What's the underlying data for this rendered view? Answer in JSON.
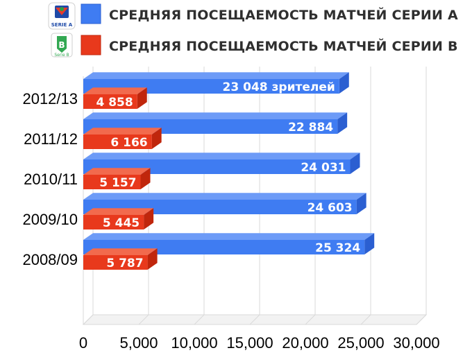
{
  "legend": {
    "seriesA_label": "СРЕДНЯЯ ПОСЕЩАЕМОСТЬ МАТЧЕЙ СЕРИИ А",
    "seriesB_label": "СРЕДНЯЯ ПОСЕЩАЕМОСТЬ МАТЧЕЙ СЕРИИ В",
    "seriesA_logo_text": "SERIE A",
    "seriesB_logo_text": "Serie B"
  },
  "colors": {
    "seriesA": "#3f7cf2",
    "seriesA_dark": "#2b5fd1",
    "seriesA_top": "#6d9bf7",
    "seriesB": "#e8391c",
    "seriesB_dark": "#c0260c",
    "seriesB_top": "#f26a4d",
    "grid": "#d9d9d9"
  },
  "chart_data": {
    "type": "bar",
    "orientation": "horizontal",
    "categories": [
      "2012/13",
      "2011/12",
      "2010/11",
      "2009/10",
      "2008/09"
    ],
    "series": [
      {
        "name": "СРЕДНЯЯ ПОСЕЩАЕМОСТЬ МАТЧЕЙ СЕРИИ А",
        "values": [
          23048,
          22884,
          24031,
          24603,
          25324
        ],
        "labels": [
          "23 048 зрителей",
          "22 884",
          "24 031",
          "24 603",
          "25 324"
        ]
      },
      {
        "name": "СРЕДНЯЯ ПОСЕЩАЕМОСТЬ МАТЧЕЙ СЕРИИ В",
        "values": [
          4858,
          6166,
          5157,
          5445,
          5787
        ],
        "labels": [
          "4 858",
          "6 166",
          "5 157",
          "5 445",
          "5 787"
        ]
      }
    ],
    "xlim": [
      0,
      30000
    ],
    "xticks": [
      0,
      5000,
      10000,
      15000,
      20000,
      25000,
      30000
    ],
    "xtick_labels": [
      "0",
      "5,000",
      "10,000",
      "15,000",
      "20,000",
      "25,000",
      "30,000"
    ],
    "grid": true,
    "legend_position": "top-left",
    "style": "3d"
  }
}
